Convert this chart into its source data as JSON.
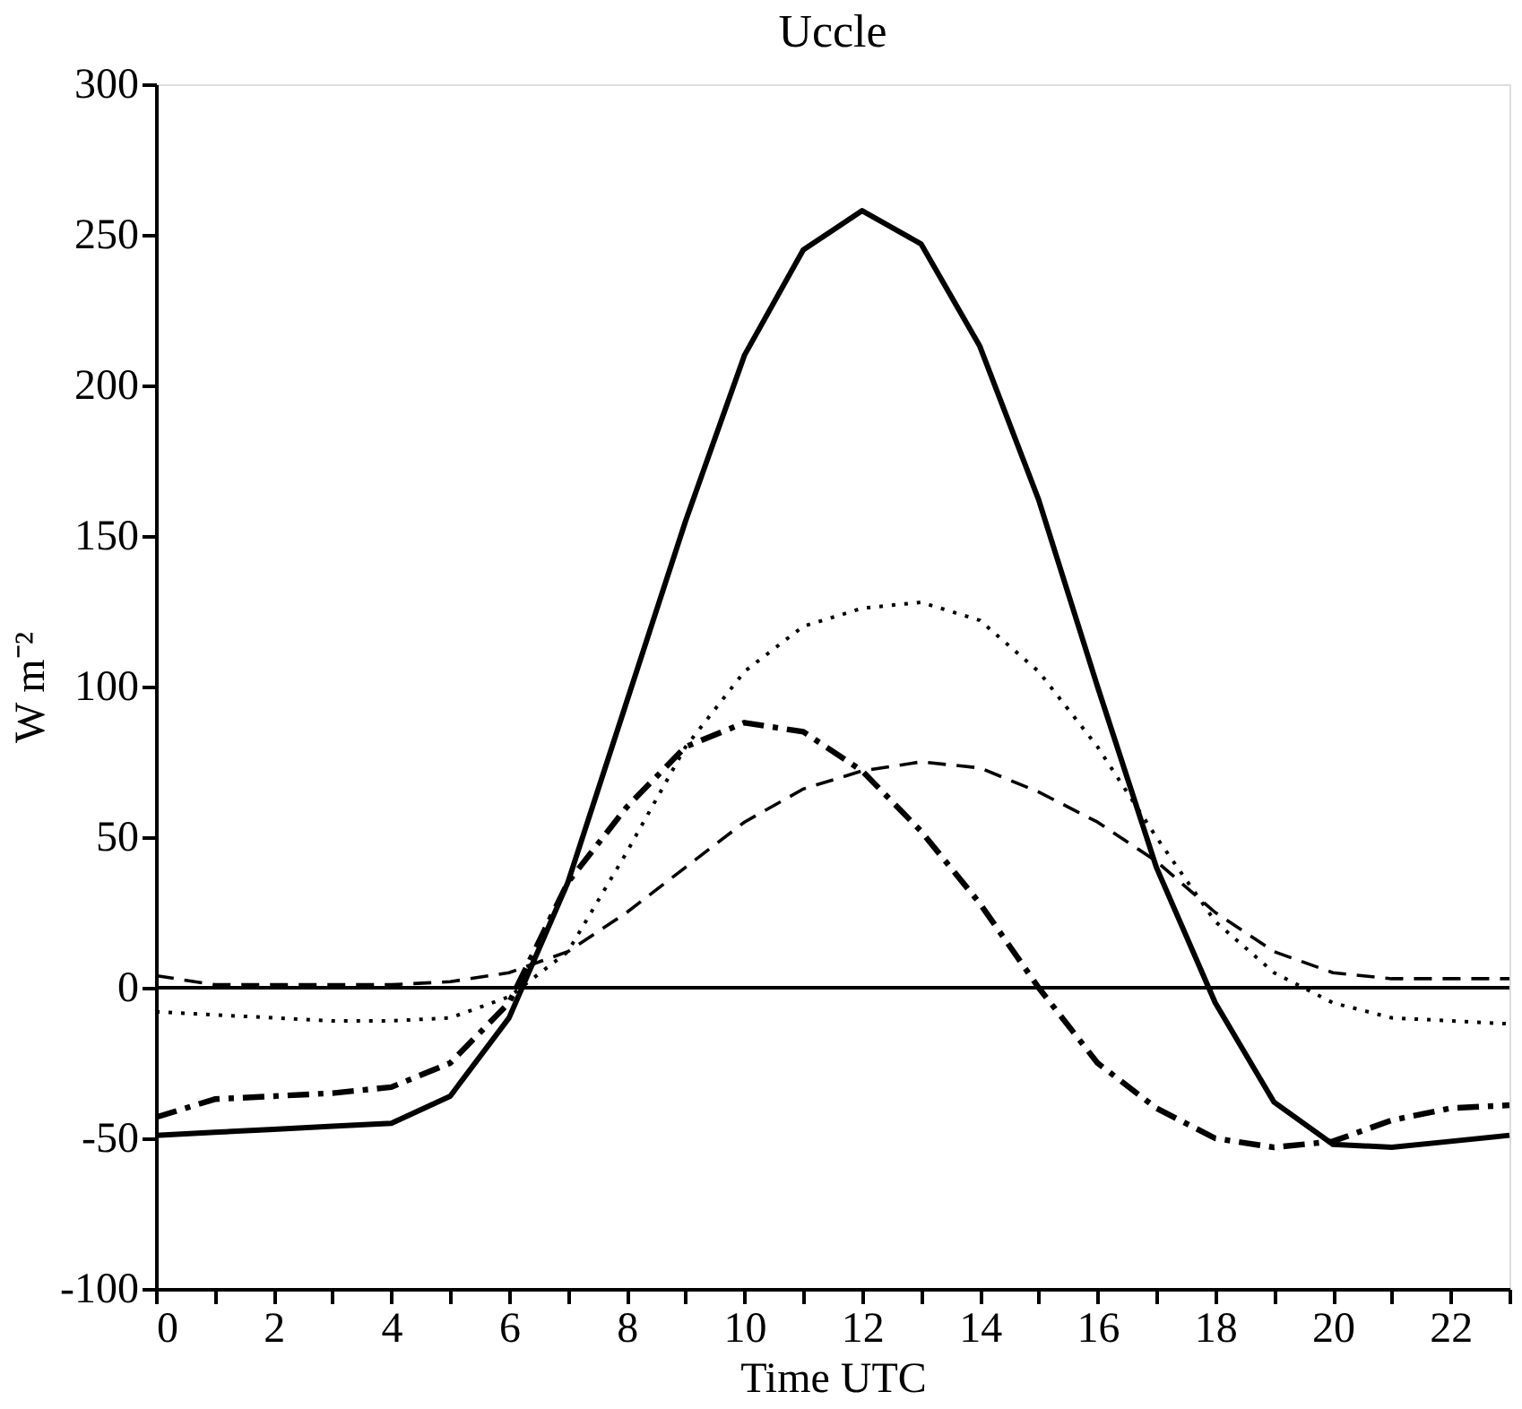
{
  "chart_data": {
    "type": "line",
    "title": "Uccle",
    "xlabel": "Time UTC",
    "ylabel": "W m⁻²",
    "x": [
      0,
      1,
      2,
      3,
      4,
      5,
      6,
      7,
      8,
      9,
      10,
      11,
      12,
      13,
      14,
      15,
      16,
      17,
      18,
      19,
      20,
      21,
      22,
      23
    ],
    "series": [
      {
        "color": "#000000",
        "line_style": "solid",
        "values": [
          -49,
          -48,
          -47,
          -46,
          -45,
          -36,
          -10,
          35,
          95,
          155,
          210,
          245,
          258,
          247,
          213,
          162,
          100,
          40,
          -5,
          -38,
          -52,
          -53,
          -51,
          -49
        ]
      },
      {
        "color": "#000000",
        "line_style": "dotted",
        "values": [
          -8,
          -9,
          -10,
          -11,
          -11,
          -10,
          -3,
          12,
          45,
          80,
          105,
          120,
          126,
          128,
          122,
          105,
          80,
          50,
          22,
          5,
          -5,
          -10,
          -11,
          -12
        ]
      },
      {
        "color": "#000000",
        "line_style": "dashed",
        "values": [
          4,
          1,
          1,
          1,
          1,
          2,
          5,
          12,
          25,
          40,
          55,
          66,
          72,
          75,
          73,
          65,
          55,
          42,
          25,
          12,
          5,
          3,
          3,
          3
        ]
      },
      {
        "color": "#000000",
        "line_style": "dashdot",
        "values": [
          -43,
          -37,
          -36,
          -35,
          -33,
          -25,
          -5,
          35,
          60,
          80,
          88,
          85,
          72,
          52,
          28,
          0,
          -25,
          -40,
          -50,
          -53,
          -51,
          -44,
          -40,
          -39
        ]
      }
    ],
    "xlim": [
      0,
      23
    ],
    "xticks": [
      0,
      {
        "value": 1,
        "label": null
      },
      2,
      {
        "value": 3,
        "label": null
      },
      4,
      {
        "value": 5,
        "label": null
      },
      6,
      {
        "value": 7,
        "label": null
      },
      8,
      {
        "value": 9,
        "label": null
      },
      10,
      {
        "value": 11,
        "label": null
      },
      12,
      {
        "value": 13,
        "label": null
      },
      14,
      {
        "value": 15,
        "label": null
      },
      16,
      {
        "value": 17,
        "label": null
      },
      18,
      {
        "value": 19,
        "label": null
      },
      20,
      {
        "value": 21,
        "label": null
      },
      22,
      {
        "value": 23,
        "label": null
      }
    ],
    "ylim": [
      -100,
      300
    ],
    "yticks": [
      -100,
      -50,
      0,
      50,
      100,
      150,
      200,
      250,
      300
    ],
    "ref_lines": [
      {
        "axis": "y",
        "value": 0,
        "color": "#000000",
        "line_style": "solid"
      }
    ],
    "grid": false,
    "marker": "none"
  }
}
